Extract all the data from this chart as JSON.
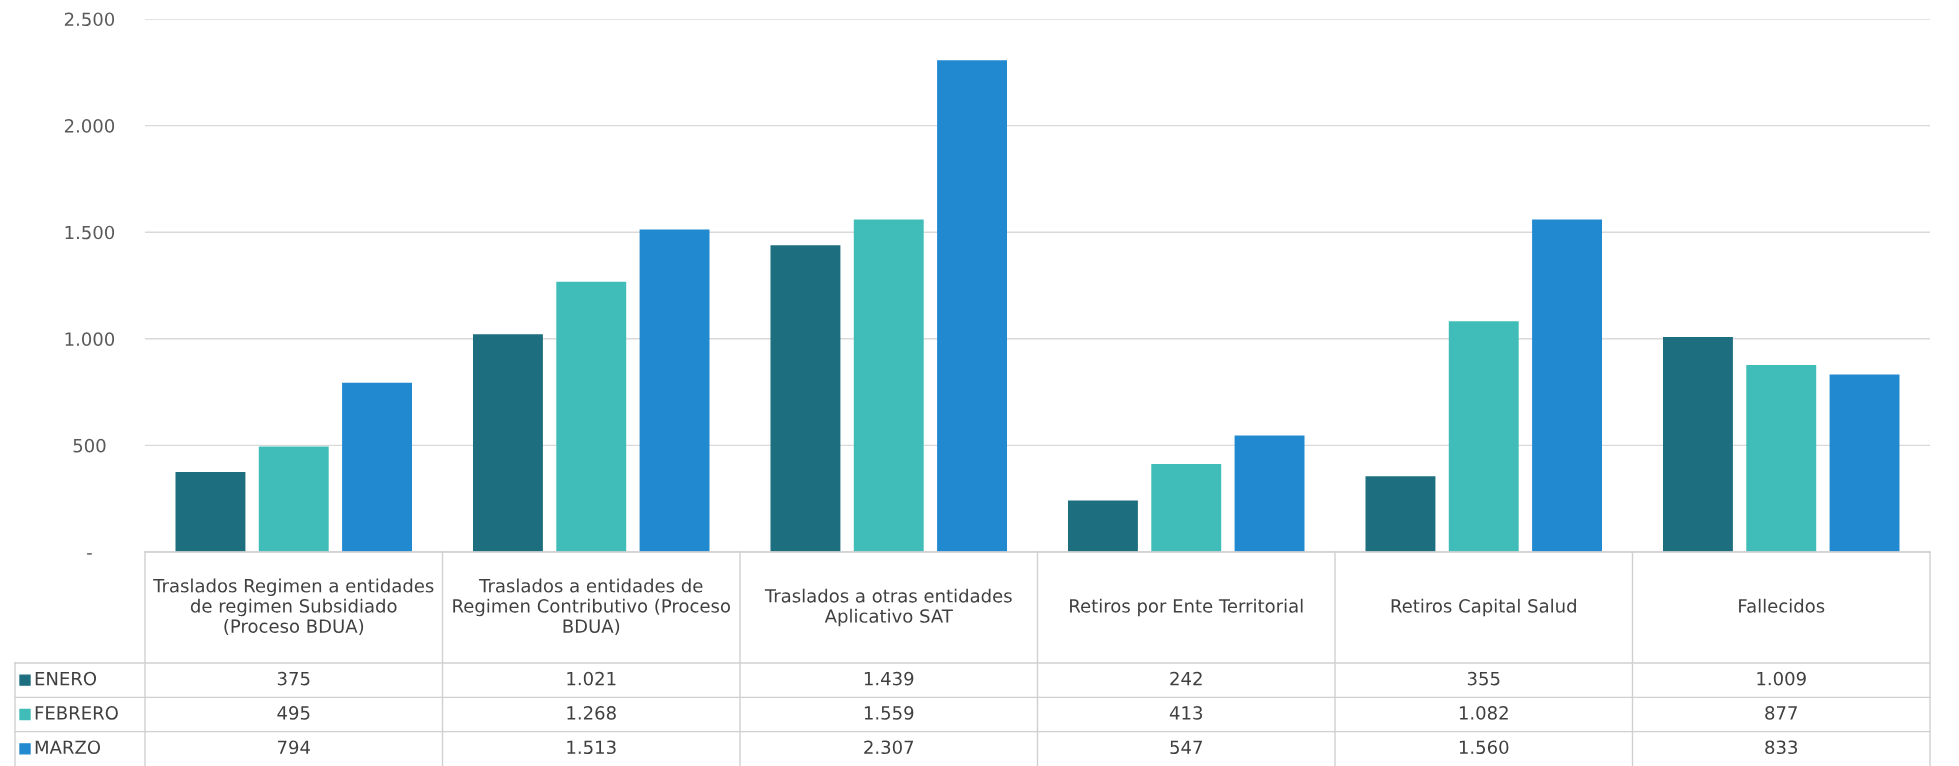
{
  "chart_data": {
    "type": "bar",
    "categories": [
      "Traslados Regimen a entidades de regimen Subsidiado (Proceso BDUA)",
      "Traslados a entidades de Regimen Contributivo (Proceso BDUA)",
      "Traslados a otras entidades Aplicativo SAT",
      "Retiros por Ente Territorial",
      "Retiros Capital Salud",
      "Fallecidos"
    ],
    "series": [
      {
        "name": "ENERO",
        "color": "#1d6f80",
        "values": [
          375,
          1021,
          1439,
          242,
          355,
          1009
        ],
        "value_labels": [
          "375",
          "1.021",
          "1.439",
          "242",
          "355",
          "1.009"
        ]
      },
      {
        "name": "FEBRERO",
        "color": "#40bdb8",
        "values": [
          495,
          1268,
          1559,
          413,
          1082,
          877
        ],
        "value_labels": [
          "495",
          "1.268",
          "1.559",
          "413",
          "1.082",
          "877"
        ]
      },
      {
        "name": "MARZO",
        "color": "#2189cf",
        "values": [
          794,
          1513,
          2307,
          547,
          1560,
          833
        ],
        "value_labels": [
          "794",
          "1.513",
          "2.307",
          "547",
          "1.560",
          "833"
        ]
      }
    ],
    "ylim": [
      0,
      2500
    ],
    "yticks": [
      {
        "value": 0,
        "label": "-"
      },
      500,
      {
        "value": 1000,
        "label": "1.000"
      },
      {
        "value": 1500,
        "label": "1.500"
      },
      {
        "value": 2000,
        "label": "2.000"
      },
      {
        "value": 2500,
        "label": "2.500"
      }
    ],
    "grid": "y",
    "legend": "bottom left"
  }
}
